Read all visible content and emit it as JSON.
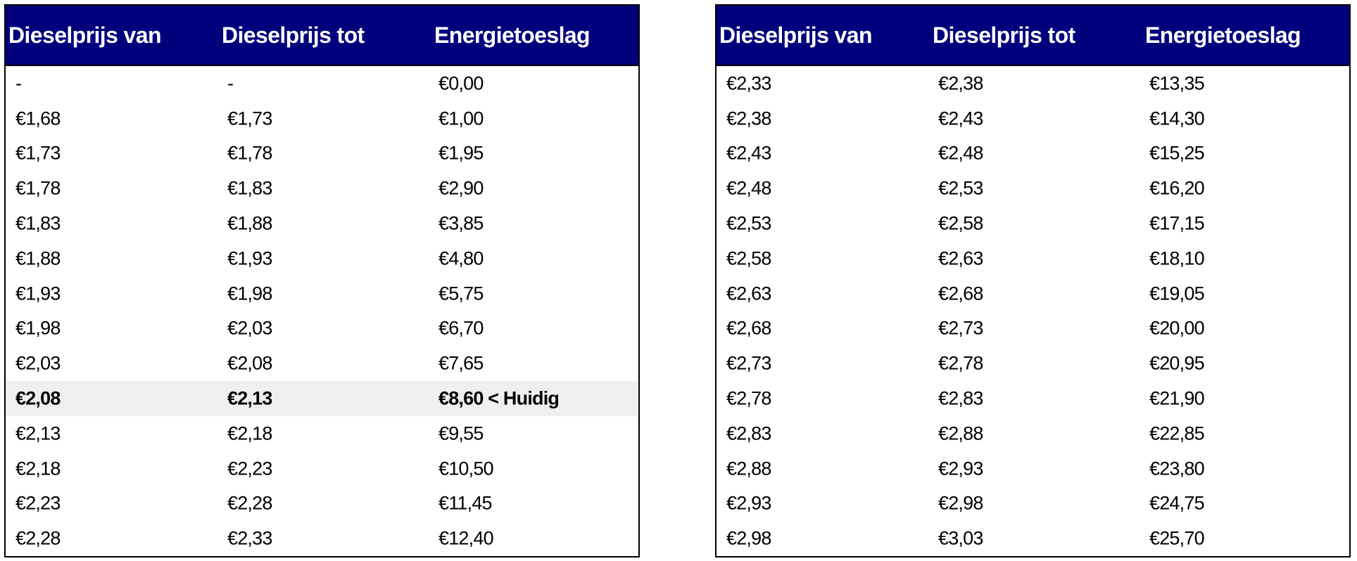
{
  "colors": {
    "header_bg": "#00007d",
    "header_text": "#ffffff",
    "current_row_bg": "#efefef"
  },
  "headers": [
    "Dieselprijs van",
    "Dieselprijs tot",
    "Energietoeslag"
  ],
  "current_marker": "< Huidig",
  "tables": [
    {
      "rows": [
        [
          "-",
          "-",
          "€0,00"
        ],
        [
          "€1,68",
          "€1,73",
          "€1,00"
        ],
        [
          "€1,73",
          "€1,78",
          "€1,95"
        ],
        [
          "€1,78",
          "€1,83",
          "€2,90"
        ],
        [
          "€1,83",
          "€1,88",
          "€3,85"
        ],
        [
          "€1,88",
          "€1,93",
          "€4,80"
        ],
        [
          "€1,93",
          "€1,98",
          "€5,75"
        ],
        [
          "€1,98",
          "€2,03",
          "€6,70"
        ],
        [
          "€2,03",
          "€2,08",
          "€7,65"
        ],
        [
          "€2,08",
          "€2,13",
          "€8,60 < Huidig"
        ],
        [
          "€2,13",
          "€2,18",
          "€9,55"
        ],
        [
          "€2,18",
          "€2,23",
          "€10,50"
        ],
        [
          "€2,23",
          "€2,28",
          "€11,45"
        ],
        [
          "€2,28",
          "€2,33",
          "€12,40"
        ]
      ],
      "current_row_index": 9
    },
    {
      "rows": [
        [
          "€2,33",
          "€2,38",
          "€13,35"
        ],
        [
          "€2,38",
          "€2,43",
          "€14,30"
        ],
        [
          "€2,43",
          "€2,48",
          "€15,25"
        ],
        [
          "€2,48",
          "€2,53",
          "€16,20"
        ],
        [
          "€2,53",
          "€2,58",
          "€17,15"
        ],
        [
          "€2,58",
          "€2,63",
          "€18,10"
        ],
        [
          "€2,63",
          "€2,68",
          "€19,05"
        ],
        [
          "€2,68",
          "€2,73",
          "€20,00"
        ],
        [
          "€2,73",
          "€2,78",
          "€20,95"
        ],
        [
          "€2,78",
          "€2,83",
          "€21,90"
        ],
        [
          "€2,83",
          "€2,88",
          "€22,85"
        ],
        [
          "€2,88",
          "€2,93",
          "€23,80"
        ],
        [
          "€2,93",
          "€2,98",
          "€24,75"
        ],
        [
          "€2,98",
          "€3,03",
          "€25,70"
        ]
      ],
      "current_row_index": null
    }
  ]
}
